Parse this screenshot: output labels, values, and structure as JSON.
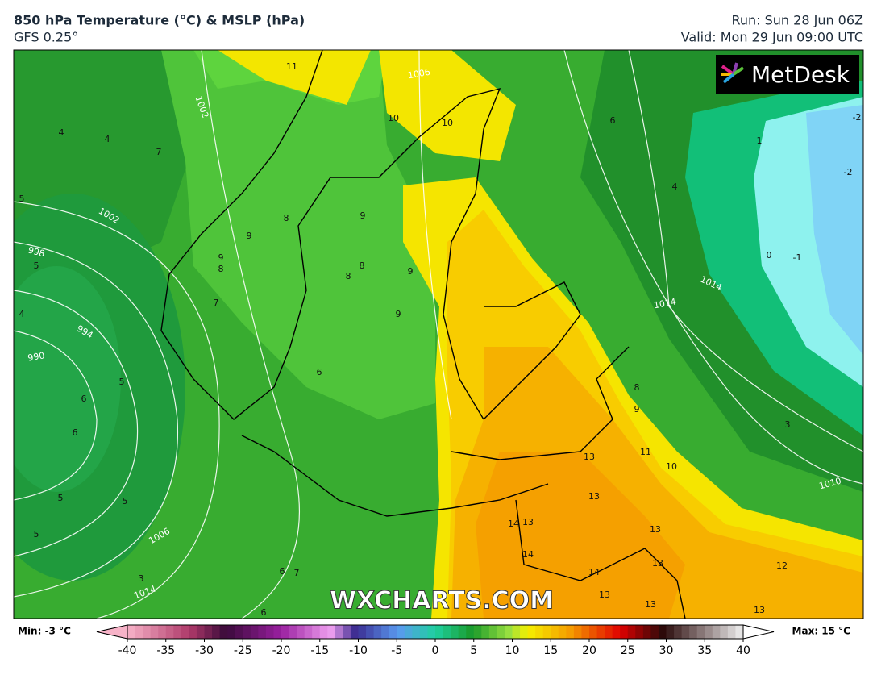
{
  "header": {
    "title": "850 hPa Temperature (°C) & MSLP (hPa)",
    "model": "GFS 0.25°",
    "run": "Run: Sun 28 Jun 06Z",
    "valid": "Valid: Mon 29 Jun 09:00 UTC"
  },
  "logo": "MetDesk",
  "watermark": "WXCHARTS.COM",
  "isobar_labels": [
    "1002",
    "1002",
    "998",
    "994",
    "990",
    "1006",
    "1014",
    "1014",
    "1014",
    "1010",
    "1006"
  ],
  "temperature_labels": [
    "11",
    "10",
    "10",
    "4",
    "4",
    "7",
    "5",
    "8",
    "9",
    "9",
    "9",
    "8",
    "8",
    "8",
    "9",
    "7",
    "6",
    "5",
    "6",
    "6",
    "9",
    "8",
    "9",
    "11",
    "10",
    "13",
    "13",
    "14",
    "13",
    "14",
    "13",
    "14",
    "13",
    "12",
    "13",
    "13",
    "13",
    "3",
    "0",
    "-1",
    "4",
    "6",
    "1",
    "-2",
    "-2",
    "5",
    "4",
    "5",
    "5",
    "5",
    "3",
    "6",
    "7",
    "6"
  ],
  "colorbar": {
    "min_label": "Min: -3 °C",
    "max_label": "Max: 15 °C",
    "lim": [
      -40,
      40
    ],
    "ticks": [
      -40,
      -35,
      -30,
      -25,
      -20,
      -15,
      -10,
      -5,
      0,
      5,
      10,
      15,
      20,
      25,
      30,
      35,
      40
    ]
  }
}
